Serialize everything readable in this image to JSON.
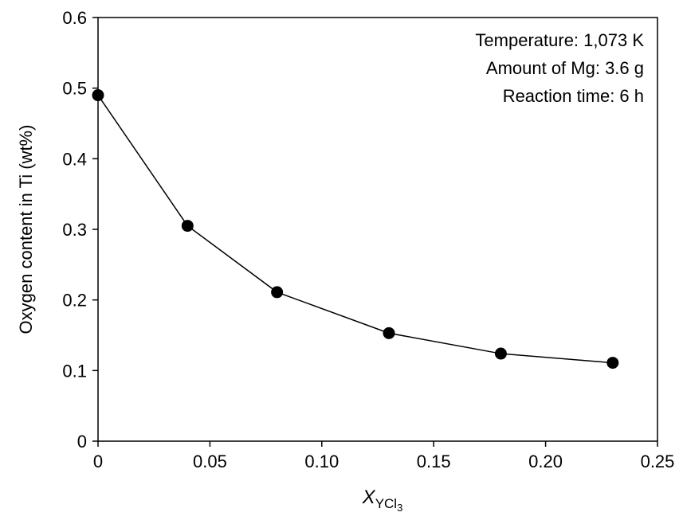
{
  "chart_data": {
    "type": "line",
    "xlabel": {
      "main": "X",
      "sub_base": "YCl",
      "sub_index": "3"
    },
    "ylabel": "Oxygen content in Ti (wt%)",
    "xlim": [
      0,
      0.25
    ],
    "ylim": [
      0,
      0.6
    ],
    "xticks": [
      0,
      0.05,
      0.1,
      0.15,
      0.2,
      0.25
    ],
    "xtick_labels": [
      "0",
      "0.05",
      "0.10",
      "0.15",
      "0.20",
      "0.25"
    ],
    "yticks": [
      0,
      0.1,
      0.2,
      0.3,
      0.4,
      0.5,
      0.6
    ],
    "ytick_labels": [
      "0",
      "0.1",
      "0.2",
      "0.3",
      "0.4",
      "0.5",
      "0.6"
    ],
    "grid": false,
    "series": [
      {
        "x": [
          0,
          0.04,
          0.08,
          0.13,
          0.18,
          0.23
        ],
        "y": [
          0.49,
          0.305,
          0.211,
          0.153,
          0.124,
          0.111
        ],
        "marker": "circle",
        "color": "#000000"
      }
    ],
    "annotations": [
      "Temperature: 1,073 K",
      "Amount of Mg: 3.6 g",
      "Reaction time: 6 h"
    ],
    "annotation_placement": "top-right"
  }
}
